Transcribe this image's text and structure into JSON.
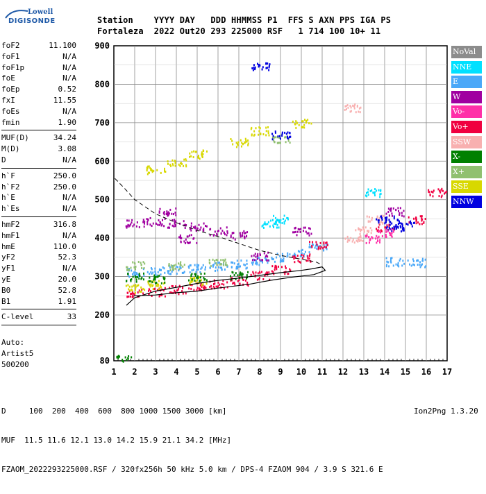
{
  "logo": {
    "line1": "Lowell",
    "line2": "DIGISONDE"
  },
  "header": {
    "line1": "Station    YYYY DAY   DDD HHMMSS P1  FFS S AXN PPS IGA PS",
    "line2": "Fortaleza  2022 Out20 293 225000 RSF   1 714 100 10+ 11"
  },
  "params": [
    {
      "label": "foF2",
      "value": "11.100"
    },
    {
      "label": "foF1",
      "value": "N/A"
    },
    {
      "label": "foF1p",
      "value": "N/A"
    },
    {
      "label": "foE",
      "value": "N/A"
    },
    {
      "label": "foEp",
      "value": "0.52"
    },
    {
      "label": "fxI",
      "value": "11.55"
    },
    {
      "label": "foEs",
      "value": "N/A"
    },
    {
      "label": "fmin",
      "value": "1.90"
    },
    {
      "sep": true
    },
    {
      "label": "MUF(D)",
      "value": "34.24"
    },
    {
      "label": "M(D)",
      "value": "3.08"
    },
    {
      "label": "D",
      "value": "N/A"
    },
    {
      "sep": true
    },
    {
      "label": "h`F",
      "value": "250.0"
    },
    {
      "label": "h`F2",
      "value": "250.0"
    },
    {
      "label": "h`E",
      "value": "N/A"
    },
    {
      "label": "h`Es",
      "value": "N/A"
    },
    {
      "sep": true
    },
    {
      "label": "hmF2",
      "value": "316.8"
    },
    {
      "label": "hmF1",
      "value": "N/A"
    },
    {
      "label": "hmE",
      "value": "110.0"
    },
    {
      "label": "yF2",
      "value": "52.3"
    },
    {
      "label": "yF1",
      "value": "N/A"
    },
    {
      "label": "yE",
      "value": "20.0"
    },
    {
      "label": "B0",
      "value": "52.8"
    },
    {
      "label": "B1",
      "value": "1.91"
    },
    {
      "sep": true
    },
    {
      "label": "C-level",
      "value": "33"
    },
    {
      "sep": true
    }
  ],
  "auto": {
    "line1": "Auto:",
    "line2": "Artist5",
    "line3": "500200"
  },
  "legend": [
    {
      "label": "NoVal",
      "color": "#8c8c8c"
    },
    {
      "label": "NNE",
      "color": "#00e0ff"
    },
    {
      "label": "E",
      "color": "#4aa8f8"
    },
    {
      "label": "W",
      "color": "#a000a0"
    },
    {
      "label": "Vo-",
      "color": "#ff30a8"
    },
    {
      "label": "Vo+",
      "color": "#f00040"
    },
    {
      "label": "SSW",
      "color": "#f8b0b0"
    },
    {
      "label": "X-",
      "color": "#008000"
    },
    {
      "label": "X+",
      "color": "#90c070"
    },
    {
      "label": "SSE",
      "color": "#d8d800"
    },
    {
      "label": "NNW",
      "color": "#0000e0"
    }
  ],
  "chart_data": {
    "type": "scatter",
    "title": "",
    "xlabel": "",
    "ylabel": "",
    "xlim": [
      1,
      17
    ],
    "ylim": [
      80,
      900
    ],
    "x_ticks": [
      "1",
      "2",
      "3",
      "4",
      "5",
      "6",
      "7",
      "8",
      "9",
      "10",
      "11",
      "12",
      "13",
      "14",
      "15",
      "16",
      "17"
    ],
    "y_ticks": [
      "80",
      "200",
      "300",
      "400",
      "500",
      "600",
      "700",
      "800",
      "900"
    ],
    "grid": true,
    "profile_solid": [
      [
        1.6,
        225
      ],
      [
        2,
        245
      ],
      [
        3,
        262
      ],
      [
        4,
        272
      ],
      [
        5,
        282
      ],
      [
        6,
        290
      ],
      [
        7,
        296
      ],
      [
        8,
        303
      ],
      [
        9,
        310
      ],
      [
        10,
        316
      ],
      [
        10.5,
        320
      ],
      [
        11,
        325
      ],
      [
        11.15,
        316
      ],
      [
        10.6,
        305
      ],
      [
        9.5,
        298
      ],
      [
        8.5,
        290
      ],
      [
        7.5,
        280
      ],
      [
        6,
        270
      ],
      [
        5,
        262
      ],
      [
        4,
        258
      ],
      [
        3,
        252
      ],
      [
        2,
        250
      ],
      [
        1.95,
        250
      ]
    ],
    "profile_dashed": [
      [
        1.05,
        555
      ],
      [
        1.5,
        530
      ],
      [
        2,
        500
      ],
      [
        3,
        463
      ],
      [
        4,
        440
      ],
      [
        5,
        420
      ],
      [
        6,
        404
      ],
      [
        7,
        386
      ],
      [
        8,
        368
      ],
      [
        9,
        355
      ],
      [
        10,
        345
      ],
      [
        10.7,
        338
      ],
      [
        11,
        330
      ]
    ],
    "series": [
      {
        "name": "E",
        "color": "#4aa8f8",
        "points": [
          [
            2,
            312
          ],
          [
            3,
            316
          ],
          [
            4,
            320
          ],
          [
            5,
            323
          ],
          [
            6,
            328
          ],
          [
            7,
            334
          ],
          [
            8,
            342
          ],
          [
            9,
            352
          ],
          [
            10,
            362
          ],
          [
            10.8,
            380
          ],
          [
            14.5,
            340
          ],
          [
            15.5,
            338
          ]
        ]
      },
      {
        "name": "Vo+",
        "color": "#f00040",
        "points": [
          [
            2,
            258
          ],
          [
            3,
            262
          ],
          [
            4,
            268
          ],
          [
            5,
            275
          ],
          [
            6,
            282
          ],
          [
            7,
            290
          ],
          [
            8,
            305
          ],
          [
            9,
            320
          ],
          [
            10,
            350
          ],
          [
            10.8,
            385
          ],
          [
            14,
            430
          ],
          [
            15.5,
            450
          ],
          [
            16.5,
            520
          ]
        ]
      },
      {
        "name": "W",
        "color": "#a000a0",
        "points": [
          [
            2,
            440
          ],
          [
            3,
            445
          ],
          [
            4,
            440
          ],
          [
            5,
            430
          ],
          [
            3.5,
            470
          ],
          [
            4.5,
            400
          ],
          [
            6,
            420
          ],
          [
            7,
            410
          ],
          [
            8,
            355
          ],
          [
            10,
            420
          ],
          [
            14.5,
            470
          ]
        ]
      },
      {
        "name": "NNE",
        "color": "#00e0ff",
        "points": [
          [
            8.5,
            440
          ],
          [
            9,
            450
          ],
          [
            13.5,
            520
          ]
        ]
      },
      {
        "name": "SSE",
        "color": "#d8d800",
        "points": [
          [
            3,
            580
          ],
          [
            4,
            600
          ],
          [
            5,
            620
          ],
          [
            7,
            650
          ],
          [
            8,
            680
          ],
          [
            10,
            700
          ],
          [
            2,
            270
          ],
          [
            3,
            280
          ],
          [
            5,
            290
          ]
        ]
      },
      {
        "name": "X-",
        "color": "#008000",
        "points": [
          [
            2,
            300
          ],
          [
            3,
            295
          ],
          [
            5,
            300
          ],
          [
            7,
            305
          ],
          [
            1.5,
            85
          ]
        ]
      },
      {
        "name": "X+",
        "color": "#90c070",
        "points": [
          [
            2,
            330
          ],
          [
            4,
            330
          ],
          [
            6,
            338
          ],
          [
            9,
            660
          ]
        ]
      },
      {
        "name": "SSW",
        "color": "#f8b0b0",
        "points": [
          [
            12.5,
            400
          ],
          [
            13,
            420
          ],
          [
            13.5,
            450
          ],
          [
            12.5,
            740
          ]
        ]
      },
      {
        "name": "NNW",
        "color": "#0000e0",
        "points": [
          [
            14,
            450
          ],
          [
            14.5,
            430
          ],
          [
            15,
            440
          ],
          [
            8,
            850
          ],
          [
            9,
            670
          ]
        ]
      },
      {
        "name": "Vo-",
        "color": "#ff30a8",
        "points": [
          [
            13.5,
            400
          ],
          [
            14,
            415
          ]
        ]
      }
    ]
  },
  "footer": {
    "line1": "D     100  200  400  600  800 1000 1500 3000 [km]",
    "line2": "MUF  11.5 11.6 12.1 13.0 14.2 15.9 21.1 34.2 [MHz]",
    "line3": "FZAOM_2022293225000.RSF / 320fx256h 50 kHz 5.0 km / DPS-4 FZAOM 904 / 3.9 S 321.6 E",
    "tag": "Ion2Png 1.3.20"
  }
}
